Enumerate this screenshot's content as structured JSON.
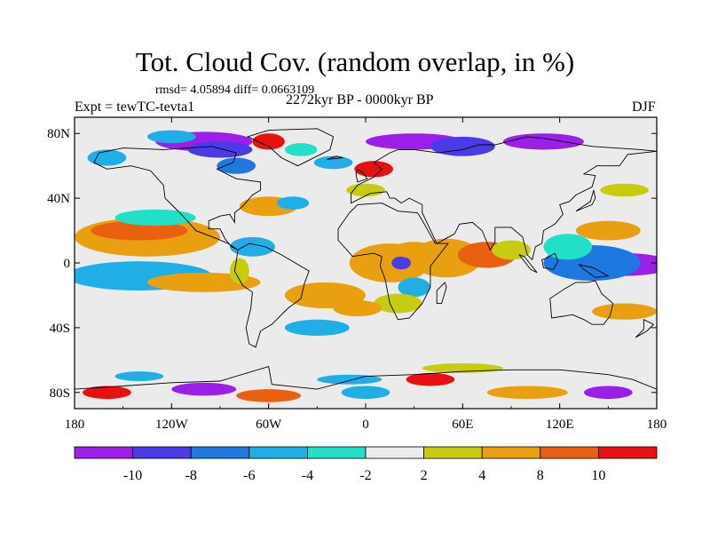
{
  "title": "Tot. Cloud Cov. (random overlap, in %)",
  "stats": {
    "rmsd_label": "rmsd=",
    "rmsd": "4.05894",
    "diff_label": "diff=",
    "diff": "0.0663109"
  },
  "experiment": "Expt = tewTC-tevta1",
  "period": "2272kyr BP - 0000kyr BP",
  "season": "DJF",
  "map": {
    "lon_range": [
      -180,
      180
    ],
    "lat_range": [
      -90,
      90
    ],
    "lon_ticks": [
      {
        "value": -180,
        "label": "180"
      },
      {
        "value": -120,
        "label": "120W"
      },
      {
        "value": -60,
        "label": "60W"
      },
      {
        "value": 0,
        "label": "0"
      },
      {
        "value": 60,
        "label": "60E"
      },
      {
        "value": 120,
        "label": "120E"
      },
      {
        "value": 180,
        "label": "180"
      }
    ],
    "lat_ticks": [
      {
        "value": 80,
        "label": "80N"
      },
      {
        "value": 40,
        "label": "40N"
      },
      {
        "value": 0,
        "label": "0"
      },
      {
        "value": -40,
        "label": "40S"
      },
      {
        "value": -80,
        "label": "80S"
      }
    ]
  },
  "colorbar": {
    "colors": [
      "#9b1fe8",
      "#4a3be6",
      "#1f78e0",
      "#20aee6",
      "#20e0c8",
      "#ebebeb",
      "#c8cc10",
      "#e8a010",
      "#e86010",
      "#e81010"
    ],
    "labels": [
      "-10",
      "-8",
      "-6",
      "-4",
      "-2",
      "2",
      "4",
      "8",
      "10"
    ]
  },
  "anomalies": [
    {
      "lon": -150,
      "lat": 15,
      "rx": 22,
      "ry": 7,
      "level": 9
    },
    {
      "lon": -135,
      "lat": 16,
      "rx": 45,
      "ry": 12,
      "level": 7
    },
    {
      "lon": -140,
      "lat": 20,
      "rx": 30,
      "ry": 6,
      "level": 8
    },
    {
      "lon": -155,
      "lat": -7,
      "rx": 25,
      "ry": 5,
      "level": 0
    },
    {
      "lon": -140,
      "lat": -8,
      "rx": 45,
      "ry": 9,
      "level": 3
    },
    {
      "lon": -100,
      "lat": -12,
      "rx": 35,
      "ry": 6,
      "level": 7
    },
    {
      "lon": -130,
      "lat": 28,
      "rx": 25,
      "ry": 5,
      "level": 4
    },
    {
      "lon": 160,
      "lat": -1,
      "rx": 30,
      "ry": 7,
      "level": 0
    },
    {
      "lon": 140,
      "lat": 0,
      "rx": 30,
      "ry": 11,
      "level": 2
    },
    {
      "lon": 125,
      "lat": 10,
      "rx": 15,
      "ry": 8,
      "level": 4
    },
    {
      "lon": 150,
      "lat": 20,
      "rx": 20,
      "ry": 6,
      "level": 7
    },
    {
      "lon": 15,
      "lat": 0,
      "rx": 25,
      "ry": 12,
      "level": 7
    },
    {
      "lon": 22,
      "lat": 0,
      "rx": 6,
      "ry": 4,
      "level": 1
    },
    {
      "lon": 30,
      "lat": 8,
      "rx": 14,
      "ry": 5,
      "level": 7
    },
    {
      "lon": 50,
      "lat": 3,
      "rx": 22,
      "ry": 12,
      "level": 7
    },
    {
      "lon": 75,
      "lat": 5,
      "rx": 18,
      "ry": 8,
      "level": 8
    },
    {
      "lon": 90,
      "lat": 8,
      "rx": 12,
      "ry": 6,
      "level": 6
    },
    {
      "lon": 30,
      "lat": -15,
      "rx": 10,
      "ry": 6,
      "level": 3
    },
    {
      "lon": 20,
      "lat": -25,
      "rx": 15,
      "ry": 6,
      "level": 6
    },
    {
      "lon": -25,
      "lat": -20,
      "rx": 25,
      "ry": 8,
      "level": 7
    },
    {
      "lon": -5,
      "lat": -28,
      "rx": 15,
      "ry": 5,
      "level": 7
    },
    {
      "lon": -60,
      "lat": 35,
      "rx": 18,
      "ry": 6,
      "level": 7
    },
    {
      "lon": -45,
      "lat": 37,
      "rx": 10,
      "ry": 4,
      "level": 3
    },
    {
      "lon": -70,
      "lat": 10,
      "rx": 14,
      "ry": 6,
      "level": 3
    },
    {
      "lon": -78,
      "lat": -5,
      "rx": 6,
      "ry": 8,
      "level": 6
    },
    {
      "lon": -30,
      "lat": -40,
      "rx": 20,
      "ry": 5,
      "level": 3
    },
    {
      "lon": 160,
      "lat": -30,
      "rx": 20,
      "ry": 5,
      "level": 7
    },
    {
      "lon": -100,
      "lat": 75,
      "rx": 30,
      "ry": 6,
      "level": 0
    },
    {
      "lon": -90,
      "lat": 70,
      "rx": 20,
      "ry": 5,
      "level": 1
    },
    {
      "lon": -120,
      "lat": 78,
      "rx": 15,
      "ry": 4,
      "level": 3
    },
    {
      "lon": -60,
      "lat": 75,
      "rx": 10,
      "ry": 5,
      "level": 9
    },
    {
      "lon": -40,
      "lat": 70,
      "rx": 10,
      "ry": 4,
      "level": 4
    },
    {
      "lon": 30,
      "lat": 75,
      "rx": 30,
      "ry": 5,
      "level": 0
    },
    {
      "lon": 60,
      "lat": 72,
      "rx": 20,
      "ry": 6,
      "level": 1
    },
    {
      "lon": 110,
      "lat": 75,
      "rx": 25,
      "ry": 5,
      "level": 0
    },
    {
      "lon": 5,
      "lat": 58,
      "rx": 12,
      "ry": 5,
      "level": 9
    },
    {
      "lon": -160,
      "lat": 65,
      "rx": 12,
      "ry": 5,
      "level": 3
    },
    {
      "lon": -80,
      "lat": 60,
      "rx": 12,
      "ry": 5,
      "level": 2
    },
    {
      "lon": -20,
      "lat": 62,
      "rx": 12,
      "ry": 4,
      "level": 3
    },
    {
      "lon": 0,
      "lat": 45,
      "rx": 12,
      "ry": 4,
      "level": 6
    },
    {
      "lon": 160,
      "lat": 45,
      "rx": 15,
      "ry": 4,
      "level": 6
    },
    {
      "lon": -100,
      "lat": -78,
      "rx": 20,
      "ry": 4,
      "level": 0
    },
    {
      "lon": -60,
      "lat": -82,
      "rx": 20,
      "ry": 4,
      "level": 8
    },
    {
      "lon": 0,
      "lat": -80,
      "rx": 15,
      "ry": 4,
      "level": 3
    },
    {
      "lon": 40,
      "lat": -72,
      "rx": 15,
      "ry": 4,
      "level": 9
    },
    {
      "lon": 100,
      "lat": -80,
      "rx": 25,
      "ry": 4,
      "level": 7
    },
    {
      "lon": 150,
      "lat": -80,
      "rx": 15,
      "ry": 4,
      "level": 0
    },
    {
      "lon": -160,
      "lat": -80,
      "rx": 15,
      "ry": 4,
      "level": 9
    },
    {
      "lon": -140,
      "lat": -70,
      "rx": 15,
      "ry": 3,
      "level": 3
    },
    {
      "lon": 60,
      "lat": -65,
      "rx": 25,
      "ry": 3,
      "level": 6
    },
    {
      "lon": -10,
      "lat": -72,
      "rx": 20,
      "ry": 3,
      "level": 3
    }
  ],
  "coastlines": [
    {
      "name": "north-america",
      "points": [
        [
          -165,
          68
        ],
        [
          -150,
          71
        ],
        [
          -125,
          70
        ],
        [
          -95,
          72
        ],
        [
          -80,
          68
        ],
        [
          -82,
          62
        ],
        [
          -92,
          58
        ],
        [
          -80,
          52
        ],
        [
          -65,
          50
        ],
        [
          -65,
          45
        ],
        [
          -70,
          42
        ],
        [
          -76,
          35
        ],
        [
          -81,
          31
        ],
        [
          -81,
          25
        ],
        [
          -84,
          30
        ],
        [
          -90,
          29
        ],
        [
          -97,
          26
        ],
        [
          -97,
          21
        ],
        [
          -90,
          21
        ],
        [
          -87,
          15
        ],
        [
          -83,
          10
        ],
        [
          -79,
          8
        ],
        [
          -85,
          12
        ],
        [
          -92,
          15
        ],
        [
          -105,
          20
        ],
        [
          -112,
          28
        ],
        [
          -118,
          34
        ],
        [
          -124,
          40
        ],
        [
          -125,
          48
        ],
        [
          -133,
          57
        ],
        [
          -145,
          60
        ],
        [
          -160,
          58
        ],
        [
          -168,
          62
        ],
        [
          -165,
          68
        ]
      ]
    },
    {
      "name": "greenland",
      "points": [
        [
          -73,
          78
        ],
        [
          -60,
          82
        ],
        [
          -30,
          83
        ],
        [
          -20,
          78
        ],
        [
          -22,
          70
        ],
        [
          -42,
          60
        ],
        [
          -52,
          65
        ],
        [
          -60,
          72
        ],
        [
          -73,
          78
        ]
      ]
    },
    {
      "name": "south-america",
      "points": [
        [
          -79,
          8
        ],
        [
          -72,
          12
        ],
        [
          -62,
          10
        ],
        [
          -52,
          5
        ],
        [
          -35,
          -5
        ],
        [
          -38,
          -13
        ],
        [
          -40,
          -22
        ],
        [
          -48,
          -28
        ],
        [
          -58,
          -38
        ],
        [
          -65,
          -42
        ],
        [
          -68,
          -52
        ],
        [
          -72,
          -50
        ],
        [
          -74,
          -40
        ],
        [
          -71,
          -28
        ],
        [
          -70,
          -18
        ],
        [
          -76,
          -14
        ],
        [
          -81,
          -5
        ],
        [
          -80,
          1
        ],
        [
          -79,
          8
        ]
      ]
    },
    {
      "name": "africa",
      "points": [
        [
          -17,
          21
        ],
        [
          -10,
          31
        ],
        [
          -5,
          36
        ],
        [
          10,
          37
        ],
        [
          20,
          32
        ],
        [
          32,
          31
        ],
        [
          34,
          28
        ],
        [
          43,
          12
        ],
        [
          51,
          12
        ],
        [
          40,
          -2
        ],
        [
          40,
          -15
        ],
        [
          35,
          -25
        ],
        [
          27,
          -34
        ],
        [
          20,
          -35
        ],
        [
          15,
          -25
        ],
        [
          12,
          -10
        ],
        [
          9,
          -2
        ],
        [
          10,
          4
        ],
        [
          5,
          6
        ],
        [
          -8,
          4
        ],
        [
          -17,
          14
        ],
        [
          -17,
          21
        ]
      ]
    },
    {
      "name": "eurasia",
      "points": [
        [
          -9,
          43
        ],
        [
          -9,
          37
        ],
        [
          3,
          43
        ],
        [
          13,
          44
        ],
        [
          15,
          40
        ],
        [
          18,
          40
        ],
        [
          22,
          37
        ],
        [
          27,
          40
        ],
        [
          35,
          36
        ],
        [
          35,
          31
        ],
        [
          44,
          12
        ],
        [
          55,
          18
        ],
        [
          58,
          24
        ],
        [
          66,
          25
        ],
        [
          72,
          20
        ],
        [
          77,
          8
        ],
        [
          80,
          13
        ],
        [
          80,
          22
        ],
        [
          90,
          22
        ],
        [
          97,
          16
        ],
        [
          100,
          5
        ],
        [
          103,
          2
        ],
        [
          105,
          10
        ],
        [
          109,
          12
        ],
        [
          110,
          20
        ],
        [
          117,
          24
        ],
        [
          122,
          30
        ],
        [
          120,
          36
        ],
        [
          126,
          38
        ],
        [
          130,
          42
        ],
        [
          140,
          47
        ],
        [
          142,
          54
        ],
        [
          135,
          55
        ],
        [
          143,
          60
        ],
        [
          157,
          60
        ],
        [
          162,
          67
        ],
        [
          180,
          69
        ],
        [
          170,
          70
        ],
        [
          140,
          72
        ],
        [
          110,
          77
        ],
        [
          100,
          78
        ],
        [
          80,
          73
        ],
        [
          70,
          73
        ],
        [
          60,
          70
        ],
        [
          45,
          68
        ],
        [
          30,
          70
        ],
        [
          20,
          70
        ],
        [
          15,
          68
        ],
        [
          5,
          62
        ],
        [
          10,
          58
        ],
        [
          5,
          53
        ],
        [
          -5,
          48
        ],
        [
          -9,
          43
        ]
      ]
    },
    {
      "name": "great-britain",
      "points": [
        [
          -5,
          50
        ],
        [
          1,
          52
        ],
        [
          -2,
          56
        ],
        [
          -5,
          58
        ],
        [
          -6,
          55
        ],
        [
          -5,
          50
        ]
      ]
    },
    {
      "name": "australia",
      "points": [
        [
          114,
          -22
        ],
        [
          123,
          -16
        ],
        [
          130,
          -12
        ],
        [
          137,
          -12
        ],
        [
          142,
          -11
        ],
        [
          146,
          -19
        ],
        [
          153,
          -25
        ],
        [
          151,
          -33
        ],
        [
          147,
          -38
        ],
        [
          140,
          -38
        ],
        [
          135,
          -35
        ],
        [
          128,
          -32
        ],
        [
          115,
          -34
        ],
        [
          114,
          -22
        ]
      ]
    },
    {
      "name": "madagascar",
      "points": [
        [
          44,
          -25
        ],
        [
          47,
          -25
        ],
        [
          50,
          -15
        ],
        [
          49,
          -12
        ],
        [
          44,
          -17
        ],
        [
          44,
          -25
        ]
      ]
    },
    {
      "name": "borneo",
      "points": [
        [
          109,
          2
        ],
        [
          112,
          3
        ],
        [
          117,
          6
        ],
        [
          119,
          1
        ],
        [
          116,
          -4
        ],
        [
          110,
          -3
        ],
        [
          109,
          2
        ]
      ]
    },
    {
      "name": "sumatra",
      "points": [
        [
          95,
          5
        ],
        [
          98,
          4
        ],
        [
          106,
          -6
        ],
        [
          102,
          -4
        ],
        [
          95,
          5
        ]
      ]
    },
    {
      "name": "new-guinea",
      "points": [
        [
          132,
          -1
        ],
        [
          141,
          -3
        ],
        [
          150,
          -8
        ],
        [
          142,
          -9
        ],
        [
          135,
          -4
        ],
        [
          132,
          -1
        ]
      ]
    },
    {
      "name": "japan",
      "points": [
        [
          130,
          32
        ],
        [
          135,
          34
        ],
        [
          140,
          36
        ],
        [
          142,
          40
        ],
        [
          141,
          45
        ],
        [
          139,
          38
        ],
        [
          133,
          34
        ],
        [
          130,
          32
        ]
      ]
    },
    {
      "name": "antarctica",
      "points": [
        [
          -180,
          -78
        ],
        [
          -150,
          -76
        ],
        [
          -120,
          -74
        ],
        [
          -90,
          -73
        ],
        [
          -60,
          -64
        ],
        [
          -58,
          -75
        ],
        [
          -30,
          -78
        ],
        [
          0,
          -70
        ],
        [
          30,
          -69
        ],
        [
          60,
          -67
        ],
        [
          90,
          -66
        ],
        [
          120,
          -66
        ],
        [
          150,
          -69
        ],
        [
          165,
          -72
        ],
        [
          180,
          -78
        ]
      ]
    },
    {
      "name": "new-zealand",
      "points": [
        [
          172,
          -35
        ],
        [
          178,
          -38
        ],
        [
          174,
          -42
        ],
        [
          167,
          -46
        ],
        [
          172,
          -41
        ],
        [
          172,
          -35
        ]
      ]
    },
    {
      "name": "iceland",
      "points": [
        [
          -24,
          64
        ],
        [
          -14,
          65
        ],
        [
          -18,
          66
        ],
        [
          -24,
          64
        ]
      ]
    }
  ]
}
